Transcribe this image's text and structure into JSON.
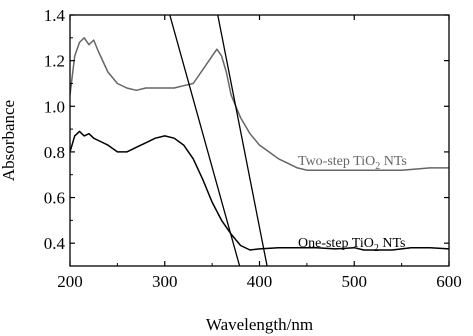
{
  "chart_data": {
    "type": "line",
    "title": "",
    "xlabel": "Wavelength/nm",
    "ylabel": "Absorbance",
    "xlim": [
      200,
      600
    ],
    "ylim": [
      0.3,
      1.4
    ],
    "xticks": [
      200,
      300,
      400,
      500,
      600
    ],
    "yticks": [
      0.4,
      0.6,
      0.8,
      1.0,
      1.2,
      1.4
    ],
    "xtick_labels": [
      "200",
      "300",
      "400",
      "500",
      "600"
    ],
    "ytick_labels": [
      "0.4",
      "0.6",
      "0.8",
      "1.0",
      "1.2",
      "1.4"
    ],
    "grid": false,
    "series": [
      {
        "label_parts": [
          "Two-step TiO",
          "2",
          " NTs"
        ],
        "color": "#666666",
        "points": [
          [
            200,
            1.05
          ],
          [
            205,
            1.22
          ],
          [
            210,
            1.28
          ],
          [
            215,
            1.3
          ],
          [
            220,
            1.27
          ],
          [
            225,
            1.29
          ],
          [
            230,
            1.24
          ],
          [
            240,
            1.15
          ],
          [
            250,
            1.1
          ],
          [
            260,
            1.08
          ],
          [
            270,
            1.07
          ],
          [
            280,
            1.08
          ],
          [
            290,
            1.08
          ],
          [
            300,
            1.08
          ],
          [
            310,
            1.08
          ],
          [
            320,
            1.09
          ],
          [
            330,
            1.1
          ],
          [
            340,
            1.16
          ],
          [
            350,
            1.22
          ],
          [
            355,
            1.25
          ],
          [
            360,
            1.22
          ],
          [
            365,
            1.15
          ],
          [
            370,
            1.05
          ],
          [
            375,
            1.0
          ],
          [
            380,
            0.95
          ],
          [
            390,
            0.88
          ],
          [
            400,
            0.83
          ],
          [
            410,
            0.8
          ],
          [
            420,
            0.77
          ],
          [
            430,
            0.75
          ],
          [
            440,
            0.73
          ],
          [
            450,
            0.72
          ],
          [
            470,
            0.72
          ],
          [
            500,
            0.72
          ],
          [
            520,
            0.72
          ],
          [
            550,
            0.72
          ],
          [
            580,
            0.73
          ],
          [
            600,
            0.73
          ]
        ]
      },
      {
        "label_parts": [
          "One-step TiO",
          "2",
          " NTs"
        ],
        "color": "#000000",
        "points": [
          [
            200,
            0.8
          ],
          [
            205,
            0.87
          ],
          [
            210,
            0.89
          ],
          [
            215,
            0.87
          ],
          [
            220,
            0.88
          ],
          [
            225,
            0.86
          ],
          [
            230,
            0.85
          ],
          [
            240,
            0.83
          ],
          [
            250,
            0.8
          ],
          [
            260,
            0.8
          ],
          [
            270,
            0.82
          ],
          [
            280,
            0.84
          ],
          [
            290,
            0.86
          ],
          [
            300,
            0.87
          ],
          [
            310,
            0.86
          ],
          [
            320,
            0.83
          ],
          [
            330,
            0.77
          ],
          [
            340,
            0.68
          ],
          [
            350,
            0.58
          ],
          [
            360,
            0.5
          ],
          [
            370,
            0.44
          ],
          [
            380,
            0.39
          ],
          [
            390,
            0.37
          ],
          [
            400,
            0.375
          ],
          [
            420,
            0.38
          ],
          [
            440,
            0.38
          ],
          [
            460,
            0.38
          ],
          [
            480,
            0.375
          ],
          [
            500,
            0.38
          ],
          [
            510,
            0.37
          ],
          [
            520,
            0.37
          ],
          [
            540,
            0.37
          ],
          [
            560,
            0.38
          ],
          [
            580,
            0.38
          ],
          [
            600,
            0.375
          ]
        ]
      }
    ],
    "annotation_lines": [
      {
        "color": "#000000",
        "points": [
          [
            304,
            1.42
          ],
          [
            379,
            0.3
          ]
        ]
      },
      {
        "color": "#000000",
        "points": [
          [
            355,
            1.42
          ],
          [
            408,
            0.3
          ]
        ]
      }
    ]
  }
}
